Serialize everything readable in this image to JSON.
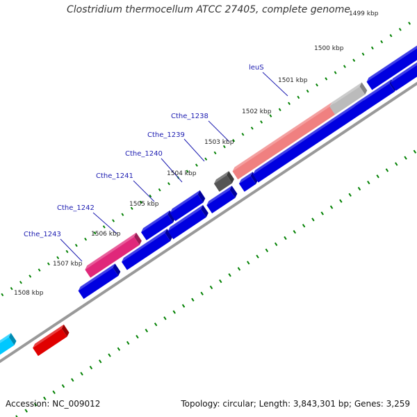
{
  "title": "Clostridium thermocellum ATCC 27405, complete genome",
  "footer": {
    "accession": "Accession: NC_009012",
    "summary": "Topology: circular; Length: 3,843,301 bp; Genes: 3,259"
  },
  "kbp_marks": [
    {
      "label": "1499 kbp"
    },
    {
      "label": "1500 kbp"
    },
    {
      "label": "1501 kbp"
    },
    {
      "label": "1502 kbp"
    },
    {
      "label": "1503 kbp"
    },
    {
      "label": "1504 kbp"
    },
    {
      "label": "1505 kbp"
    },
    {
      "label": "1506 kbp"
    },
    {
      "label": "1507 kbp"
    },
    {
      "label": "1508 kbp"
    }
  ],
  "gene_labels": [
    {
      "name": "leuS"
    },
    {
      "name": "Cthe_1238"
    },
    {
      "name": "Cthe_1239"
    },
    {
      "name": "Cthe_1240"
    },
    {
      "name": "Cthe_1241"
    },
    {
      "name": "Cthe_1242"
    },
    {
      "name": "Cthe_1243"
    }
  ],
  "colors": {
    "gene_blue": "#0000e0",
    "leuS_salmon": "#f08080",
    "magenta": "#e0287a",
    "red": "#e00000",
    "gray_gene": "#bbbbbb",
    "dark_gray_gene": "#555555",
    "cyan": "#00c8ff",
    "backbone": "#999999",
    "tick_green": "#008000",
    "label_blue": "#1a1ab0"
  }
}
